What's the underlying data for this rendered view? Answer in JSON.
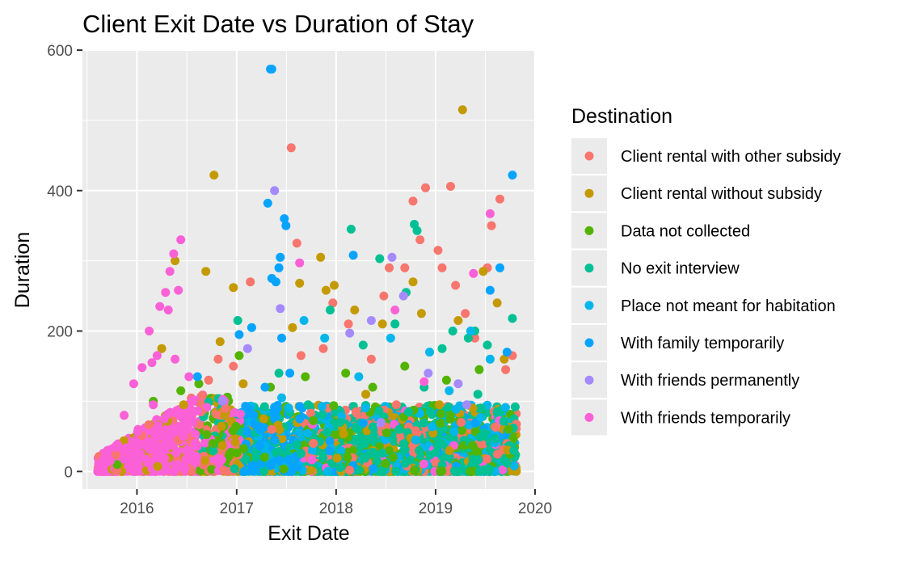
{
  "chart_data": {
    "type": "scatter",
    "title": "Client Exit Date vs Duration of Stay",
    "xlabel": "Exit Date",
    "ylabel": "Duration",
    "x_ticks": [
      "2016",
      "2017",
      "2018",
      "2019",
      "2020"
    ],
    "y_ticks": [
      0,
      200,
      400,
      600
    ],
    "xlim": [
      "2015-06-15",
      "2020-01-01"
    ],
    "ylim": [
      -25,
      600
    ],
    "grid": true,
    "legend": {
      "title": "Destination",
      "placement": "right"
    },
    "series": [
      {
        "name": "Client rental with other subsidy",
        "color": "#F8766D",
        "points": [
          [
            "2016-06-01",
            45
          ],
          [
            "2016-09-20",
            130
          ],
          [
            "2016-10-25",
            160
          ],
          [
            "2016-12-20",
            150
          ],
          [
            "2017-02-20",
            270
          ],
          [
            "2017-07-20",
            461
          ],
          [
            "2017-08-10",
            325
          ],
          [
            "2017-08-25",
            165
          ],
          [
            "2017-11-15",
            175
          ],
          [
            "2017-12-20",
            240
          ],
          [
            "2018-02-15",
            210
          ],
          [
            "2018-05-10",
            160
          ],
          [
            "2018-06-25",
            250
          ],
          [
            "2018-07-15",
            290
          ],
          [
            "2018-09-10",
            290
          ],
          [
            "2018-10-10",
            385
          ],
          [
            "2018-11-05",
            330
          ],
          [
            "2018-11-25",
            404
          ],
          [
            "2019-01-10",
            315
          ],
          [
            "2019-01-25",
            290
          ],
          [
            "2019-02-25",
            406
          ],
          [
            "2019-03-15",
            265
          ],
          [
            "2019-04-20",
            225
          ],
          [
            "2019-05-25",
            190
          ],
          [
            "2019-07-10",
            290
          ],
          [
            "2019-07-25",
            350
          ],
          [
            "2019-08-25",
            388
          ],
          [
            "2019-10-10",
            165
          ],
          [
            "2019-09-15",
            145
          ],
          [
            "2018-08-10",
            95
          ],
          [
            "2017-05-10",
            60
          ],
          [
            "2018-03-15",
            85
          ],
          [
            "2019-04-05",
            70
          ],
          [
            "2017-10-10",
            40
          ],
          [
            "2016-11-20",
            90
          ]
        ]
      },
      {
        "name": "Client rental without subsidy",
        "color": "#C49A00",
        "points": [
          [
            "2016-04-01",
            175
          ],
          [
            "2016-05-20",
            300
          ],
          [
            "2016-09-10",
            285
          ],
          [
            "2016-10-10",
            422
          ],
          [
            "2016-11-01",
            185
          ],
          [
            "2016-12-20",
            262
          ],
          [
            "2017-01-25",
            125
          ],
          [
            "2017-07-25",
            205
          ],
          [
            "2017-08-20",
            268
          ],
          [
            "2017-11-05",
            305
          ],
          [
            "2017-11-25",
            258
          ],
          [
            "2017-12-25",
            265
          ],
          [
            "2018-03-10",
            230
          ],
          [
            "2018-06-20",
            210
          ],
          [
            "2018-10-10",
            270
          ],
          [
            "2018-11-10",
            225
          ],
          [
            "2019-03-25",
            215
          ],
          [
            "2019-04-10",
            515
          ],
          [
            "2019-06-25",
            285
          ],
          [
            "2019-08-15",
            240
          ],
          [
            "2019-09-10",
            160
          ],
          [
            "2016-06-20",
            95
          ],
          [
            "2017-04-10",
            75
          ],
          [
            "2018-04-20",
            110
          ],
          [
            "2019-01-15",
            95
          ]
        ]
      },
      {
        "name": "Data not collected",
        "color": "#53B400",
        "points": [
          [
            "2016-03-01",
            100
          ],
          [
            "2016-06-10",
            115
          ],
          [
            "2016-08-15",
            125
          ],
          [
            "2017-01-10",
            165
          ],
          [
            "2017-05-05",
            120
          ],
          [
            "2017-09-10",
            135
          ],
          [
            "2018-02-05",
            140
          ],
          [
            "2018-05-15",
            120
          ],
          [
            "2018-09-10",
            150
          ],
          [
            "2019-02-10",
            130
          ],
          [
            "2019-06-10",
            145
          ],
          [
            "2019-09-25",
            60
          ],
          [
            "2015-10-20",
            10
          ],
          [
            "2016-10-05",
            40
          ],
          [
            "2018-07-05",
            55
          ]
        ]
      },
      {
        "name": "No exit interview",
        "color": "#00C094",
        "points": [
          [
            "2017-12-10",
            230
          ],
          [
            "2018-02-25",
            345
          ],
          [
            "2018-06-10",
            303
          ],
          [
            "2018-09-15",
            255
          ],
          [
            "2018-10-15",
            352
          ],
          [
            "2018-10-25",
            343
          ],
          [
            "2019-03-05",
            200
          ],
          [
            "2019-05-01",
            190
          ],
          [
            "2019-05-25",
            200
          ],
          [
            "2019-07-10",
            180
          ],
          [
            "2019-10-10",
            218
          ],
          [
            "2019-10-20",
            92
          ],
          [
            "2017-01-05",
            215
          ],
          [
            "2017-06-05",
            140
          ],
          [
            "2018-04-10",
            180
          ],
          [
            "2018-08-05",
            210
          ],
          [
            "2019-01-25",
            175
          ],
          [
            "2019-06-05",
            110
          ],
          [
            "2017-03-10",
            55
          ],
          [
            "2017-09-20",
            95
          ],
          [
            "2018-01-15",
            70
          ],
          [
            "2018-11-20",
            120
          ],
          [
            "2019-08-15",
            85
          ],
          [
            "2019-10-15",
            30
          ]
        ]
      },
      {
        "name": "Place not meant for habitation",
        "color": "#00B6EB",
        "points": [
          [
            "2017-09-05",
            215
          ],
          [
            "2017-11-20",
            190
          ],
          [
            "2018-07-20",
            190
          ],
          [
            "2019-05-10",
            200
          ],
          [
            "2019-07-20",
            160
          ],
          [
            "2018-12-10",
            170
          ],
          [
            "2017-06-15",
            105
          ],
          [
            "2018-03-25",
            135
          ],
          [
            "2019-02-20",
            115
          ],
          [
            "2018-10-20",
            45
          ]
        ]
      },
      {
        "name": "With family temporarily",
        "color": "#06A4FF",
        "points": [
          [
            "2017-05-05",
            573
          ],
          [
            "2017-05-10",
            573
          ],
          [
            "2017-04-25",
            382
          ],
          [
            "2017-05-10",
            275
          ],
          [
            "2017-06-25",
            360
          ],
          [
            "2017-07-01",
            350
          ],
          [
            "2017-06-10",
            305
          ],
          [
            "2017-06-05",
            290
          ],
          [
            "2017-05-25",
            270
          ],
          [
            "2017-02-25",
            205
          ],
          [
            "2017-01-10",
            195
          ],
          [
            "2017-06-15",
            190
          ],
          [
            "2017-07-15",
            140
          ],
          [
            "2016-08-10",
            135
          ],
          [
            "2018-03-05",
            308
          ],
          [
            "2019-07-20",
            258
          ],
          [
            "2019-08-25",
            290
          ],
          [
            "2019-10-10",
            422
          ],
          [
            "2019-09-20",
            170
          ],
          [
            "2017-08-20",
            75
          ],
          [
            "2017-03-25",
            60
          ],
          [
            "2017-04-15",
            120
          ],
          [
            "2017-05-20",
            45
          ]
        ]
      },
      {
        "name": "With friends permanently",
        "color": "#A58AFF",
        "points": [
          [
            "2017-05-20",
            400
          ],
          [
            "2017-06-10",
            232
          ],
          [
            "2018-07-25",
            305
          ],
          [
            "2018-05-10",
            215
          ],
          [
            "2018-02-20",
            197
          ],
          [
            "2018-09-05",
            250
          ],
          [
            "2018-12-05",
            140
          ],
          [
            "2019-03-25",
            125
          ],
          [
            "2017-02-10",
            175
          ],
          [
            "2016-11-10",
            100
          ],
          [
            "2019-04-25",
            95
          ],
          [
            "2018-06-15",
            70
          ]
        ]
      },
      {
        "name": "With friends temporarily",
        "color": "#FB61D7",
        "points": [
          [
            "2016-06-10",
            330
          ],
          [
            "2016-05-15",
            310
          ],
          [
            "2016-04-15",
            255
          ],
          [
            "2016-03-25",
            235
          ],
          [
            "2016-02-15",
            200
          ],
          [
            "2016-04-25",
            230
          ],
          [
            "2016-06-01",
            258
          ],
          [
            "2016-05-01",
            285
          ],
          [
            "2016-01-20",
            148
          ],
          [
            "2015-12-20",
            125
          ],
          [
            "2016-02-25",
            155
          ],
          [
            "2016-03-15",
            165
          ],
          [
            "2016-05-20",
            160
          ],
          [
            "2016-07-10",
            135
          ],
          [
            "2017-08-20",
            297
          ],
          [
            "2019-07-20",
            367
          ],
          [
            "2019-05-20",
            282
          ],
          [
            "2018-08-05",
            230
          ],
          [
            "2018-11-20",
            128
          ],
          [
            "2015-11-15",
            80
          ],
          [
            "2016-01-05",
            60
          ],
          [
            "2016-03-01",
            95
          ],
          [
            "2016-04-10",
            75
          ],
          [
            "2016-06-20",
            50
          ],
          [
            "2016-08-01",
            40
          ],
          [
            "2015-10-20",
            35
          ],
          [
            "2015-09-25",
            15
          ]
        ]
      }
    ]
  }
}
